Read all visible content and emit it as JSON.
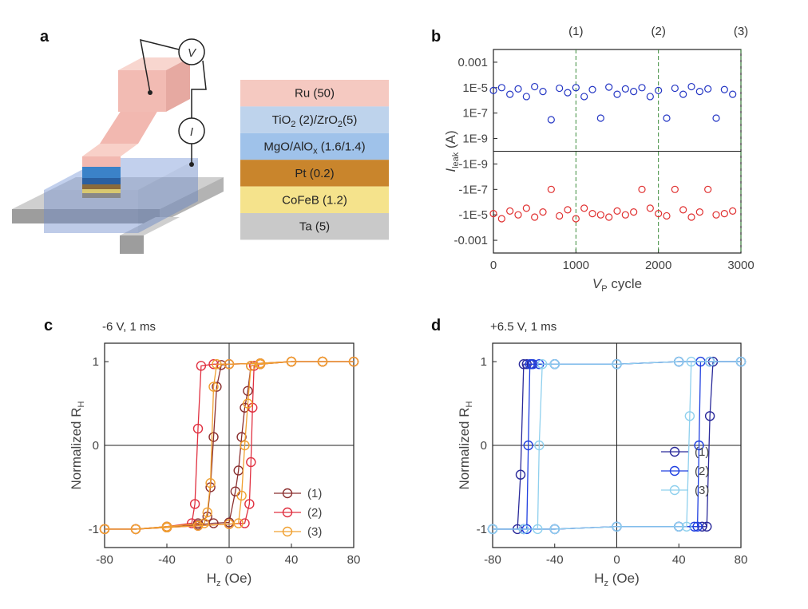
{
  "diagram": {
    "panel": "a",
    "meters": [
      "V",
      "I"
    ],
    "layers": [
      {
        "label": [
          "Ru (50)"
        ],
        "color": "#f5c9c1"
      },
      {
        "label": [
          "TiO",
          "2",
          " (2)/ZrO",
          "2",
          "(5)"
        ],
        "color": "#bed3ec"
      },
      {
        "label": [
          "MgO/AlO",
          "x",
          " (1.6/1.4)"
        ],
        "color": "#9fc2ea"
      },
      {
        "label": [
          "Pt (0.2)"
        ],
        "color": "#c9852c"
      },
      {
        "label": [
          "CoFeB (1.2)"
        ],
        "color": "#f5e38c"
      },
      {
        "label": [
          "Ta (5)"
        ],
        "color": "#c9c9c9"
      }
    ]
  },
  "chart_data": [
    {
      "type": "scatter",
      "panel": "b",
      "yscale": "symlog",
      "xlabel": [
        "V",
        "P",
        " cycle"
      ],
      "ylabel": [
        "I",
        "leak",
        " (A)"
      ],
      "x": [
        0,
        100,
        200,
        300,
        400,
        500,
        600,
        700,
        800,
        900,
        1000,
        1100,
        1200,
        1300,
        1400,
        1500,
        1600,
        1700,
        1800,
        1900,
        2000,
        2100,
        2200,
        2300,
        2400,
        2500,
        2600,
        2700,
        2800,
        2900
      ],
      "series": [
        {
          "color": "#2436c4",
          "values": [
            6e-06,
            1e-05,
            3e-06,
            8e-06,
            2e-06,
            1.2e-05,
            5e-06,
            3e-08,
            9e-06,
            4e-06,
            1e-05,
            2e-06,
            7e-06,
            4e-08,
            1.1e-05,
            3e-06,
            8e-06,
            5e-06,
            1e-05,
            2e-06,
            6e-06,
            4e-08,
            9e-06,
            3e-06,
            1.2e-05,
            5e-06,
            8e-06,
            4e-08,
            7e-06,
            3e-06
          ]
        },
        {
          "color": "#e03030",
          "values": [
            -8e-06,
            -2e-05,
            -5e-06,
            -1e-05,
            -3e-06,
            -1.5e-05,
            -6e-06,
            -1e-07,
            -1.2e-05,
            -4e-06,
            -2e-05,
            -3e-06,
            -8e-06,
            -1e-05,
            -1.5e-05,
            -5e-06,
            -1e-05,
            -6e-06,
            -1e-07,
            -3e-06,
            -8e-06,
            -1.2e-05,
            -1e-07,
            -4e-06,
            -1.5e-05,
            -6e-06,
            -1e-07,
            -1e-05,
            -8e-06,
            -5e-06
          ]
        }
      ],
      "xlim": [
        0,
        3000
      ],
      "ylim": [
        -0.01,
        0.01
      ],
      "xticks": [
        0,
        1000,
        2000,
        3000
      ],
      "yticks": [
        0.001,
        {
          "value": 1e-05,
          "label": "1E-5"
        },
        {
          "value": 1e-07,
          "label": "1E-7"
        },
        {
          "value": 1e-09,
          "label": "1E-9"
        },
        {
          "value": -1e-09,
          "label": "-1E-9"
        },
        {
          "value": -1e-07,
          "label": "-1E-7"
        },
        {
          "value": -1e-05,
          "label": "-1E-5"
        },
        -0.001
      ],
      "annotations": [
        {
          "value": 1000,
          "label": "(1)"
        },
        {
          "value": 2000,
          "label": "(2)"
        },
        {
          "value": 3000,
          "label": "(3)"
        }
      ]
    },
    {
      "type": "line",
      "panel": "c",
      "title": "-6 V, 1 ms",
      "xlabel": [
        "H",
        "z",
        " (Oe)"
      ],
      "ylabel": [
        "Normalized R",
        "H"
      ],
      "xlim": [
        -80,
        80
      ],
      "ylim": [
        -1.22,
        1.22
      ],
      "xticks": [
        -80,
        -40,
        0,
        40,
        80
      ],
      "yticks": [
        -1,
        0,
        1
      ],
      "legend": "lower right",
      "series": [
        {
          "name": "(1)",
          "color": "#8b3030",
          "x": [
            -80,
            -60,
            -40,
            -20,
            -10,
            0,
            4,
            6,
            8,
            10,
            12,
            14,
            20,
            40,
            60,
            80,
            60,
            40,
            20,
            0,
            -5,
            -8,
            -10,
            -12,
            -14,
            -20,
            -40,
            -60,
            -80
          ],
          "values": [
            -1,
            -1,
            -0.98,
            -0.95,
            -0.93,
            -0.92,
            -0.55,
            -0.3,
            0.1,
            0.45,
            0.65,
            0.95,
            0.97,
            1,
            1,
            1,
            1,
            1,
            0.98,
            0.97,
            0.96,
            0.7,
            0.1,
            -0.5,
            -0.85,
            -0.93,
            -0.97,
            -1,
            -1
          ]
        },
        {
          "name": "(2)",
          "color": "#e03040",
          "x": [
            -80,
            -60,
            -40,
            -20,
            0,
            10,
            13,
            14,
            15,
            16,
            20,
            40,
            60,
            80,
            60,
            40,
            20,
            0,
            -10,
            -18,
            -20,
            -22,
            -24,
            -40,
            -60,
            -80
          ],
          "values": [
            -1,
            -1,
            -0.98,
            -0.96,
            -0.94,
            -0.93,
            -0.7,
            -0.2,
            0.45,
            0.95,
            0.97,
            1,
            1,
            1,
            1,
            1,
            0.98,
            0.97,
            0.97,
            0.95,
            0.2,
            -0.7,
            -0.93,
            -0.97,
            -1,
            -1
          ]
        },
        {
          "name": "(3)",
          "color": "#f0a030",
          "x": [
            -80,
            -60,
            -40,
            -20,
            0,
            6,
            8,
            10,
            12,
            14,
            20,
            40,
            60,
            80,
            60,
            40,
            20,
            0,
            -8,
            -10,
            -12,
            -14,
            -16,
            -40,
            -60,
            -80
          ],
          "values": [
            -1,
            -1,
            -0.98,
            -0.96,
            -0.94,
            -0.93,
            -0.6,
            0,
            0.5,
            0.95,
            0.97,
            1,
            1,
            1,
            1,
            1,
            0.98,
            0.97,
            0.97,
            0.7,
            -0.45,
            -0.8,
            -0.93,
            -0.97,
            -1,
            -1
          ]
        }
      ]
    },
    {
      "type": "line",
      "panel": "d",
      "title": "+6.5 V, 1 ms",
      "xlabel": [
        "H",
        "z",
        " (Oe)"
      ],
      "ylabel": [
        "Normalized R",
        "H"
      ],
      "xlim": [
        -80,
        80
      ],
      "ylim": [
        -1.22,
        1.22
      ],
      "xticks": [
        -80,
        -40,
        0,
        40,
        80
      ],
      "yticks": [
        -1,
        0,
        1
      ],
      "legend": "center right",
      "series": [
        {
          "name": "(1)",
          "color": "#2a2a9a",
          "x": [
            -80,
            -60,
            -40,
            0,
            40,
            55,
            58,
            60,
            62,
            80,
            60,
            40,
            0,
            -40,
            -55,
            -58,
            -60,
            -62,
            -64,
            -80
          ],
          "values": [
            -1,
            -1,
            -1,
            -0.97,
            -0.97,
            -0.97,
            -0.97,
            0.35,
            1,
            1,
            1,
            1,
            0.97,
            0.97,
            0.97,
            0.97,
            0.97,
            -0.35,
            -1,
            -1
          ]
        },
        {
          "name": "(2)",
          "color": "#2040e0",
          "x": [
            -80,
            -60,
            -40,
            0,
            40,
            50,
            52,
            53,
            54,
            80,
            60,
            40,
            0,
            -40,
            -50,
            -54,
            -56,
            -57,
            -58,
            -80
          ],
          "values": [
            -1,
            -1,
            -1,
            -0.97,
            -0.97,
            -0.97,
            -0.97,
            0,
            1,
            1,
            1,
            1,
            0.97,
            0.97,
            0.97,
            0.97,
            0.97,
            0,
            -1,
            -1
          ]
        },
        {
          "name": "(3)",
          "color": "#8fd0ee",
          "x": [
            -80,
            -60,
            -40,
            0,
            40,
            45,
            47,
            48,
            80,
            60,
            40,
            0,
            -40,
            -48,
            -50,
            -51,
            -80
          ],
          "values": [
            -1,
            -1,
            -1,
            -0.97,
            -0.97,
            -0.97,
            0.35,
            1,
            1,
            1,
            1,
            0.97,
            0.97,
            0.97,
            0,
            -1,
            -1
          ]
        }
      ]
    }
  ]
}
